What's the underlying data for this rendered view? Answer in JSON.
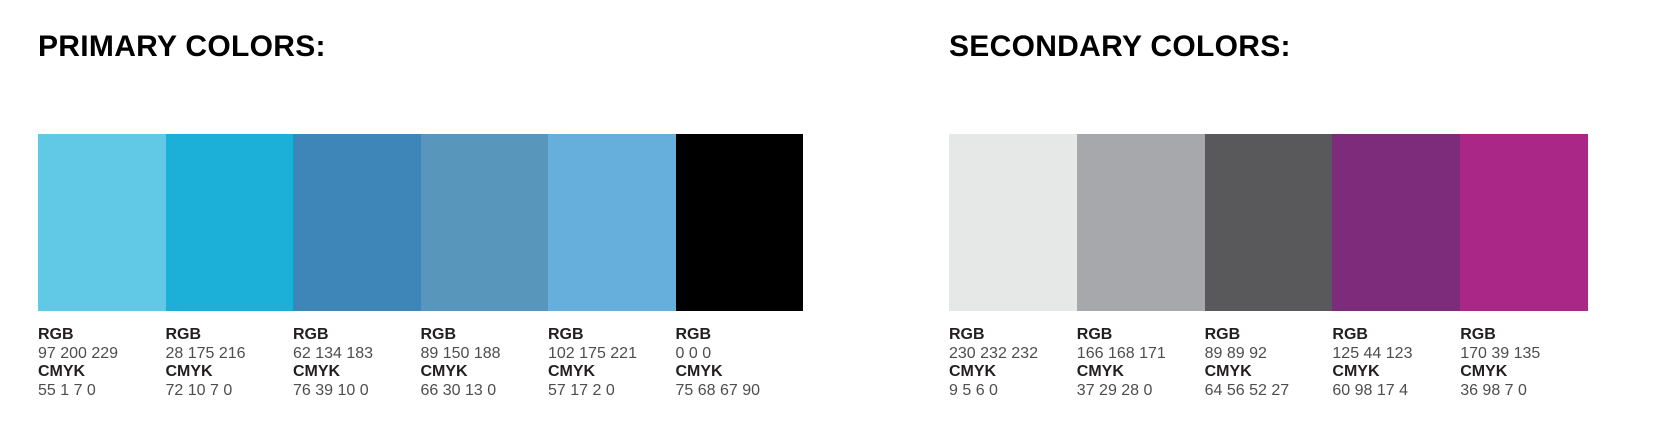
{
  "labels": {
    "rgb": "RGB",
    "cmyk": "CMYK"
  },
  "sections": [
    {
      "title": "PRIMARY COLORS:",
      "swatches": [
        {
          "name": "sky-blue",
          "hex": "#61C8E5",
          "rgb": "97 200 229",
          "cmyk": "55 1 7 0"
        },
        {
          "name": "cyan-blue",
          "hex": "#1CAFD8",
          "rgb": "28 175 216",
          "cmyk": "72 10 7 0"
        },
        {
          "name": "steel-blue",
          "hex": "#3E86B7",
          "rgb": "62 134 183",
          "cmyk": "76 39 10 0"
        },
        {
          "name": "slate-blue",
          "hex": "#5996BC",
          "rgb": "89 150 188",
          "cmyk": "66 30 13 0"
        },
        {
          "name": "cornflower-blue",
          "hex": "#66AFDD",
          "rgb": "102 175 221",
          "cmyk": "57 17 2 0"
        },
        {
          "name": "black",
          "hex": "#000000",
          "rgb": "0 0 0",
          "cmyk": "75 68 67 90"
        }
      ]
    },
    {
      "title": "SECONDARY COLORS:",
      "swatches": [
        {
          "name": "light-gray",
          "hex": "#E6E8E8",
          "rgb": "230 232 232",
          "cmyk": "9 5 6 0"
        },
        {
          "name": "medium-gray",
          "hex": "#A6A8AB",
          "rgb": "166 168 171",
          "cmyk": "37 29 28 0"
        },
        {
          "name": "dark-gray",
          "hex": "#59595C",
          "rgb": "89 89 92",
          "cmyk": "64 56 52 27"
        },
        {
          "name": "dark-purple",
          "hex": "#7D2C7B",
          "rgb": "125 44 123",
          "cmyk": "60 98 17 4"
        },
        {
          "name": "magenta",
          "hex": "#AA2787",
          "rgb": "170 39 135",
          "cmyk": "36 98 7 0"
        }
      ]
    }
  ],
  "colors": {
    "heading": "#000000",
    "label": "#231f20",
    "value": "#4d4d4f"
  }
}
